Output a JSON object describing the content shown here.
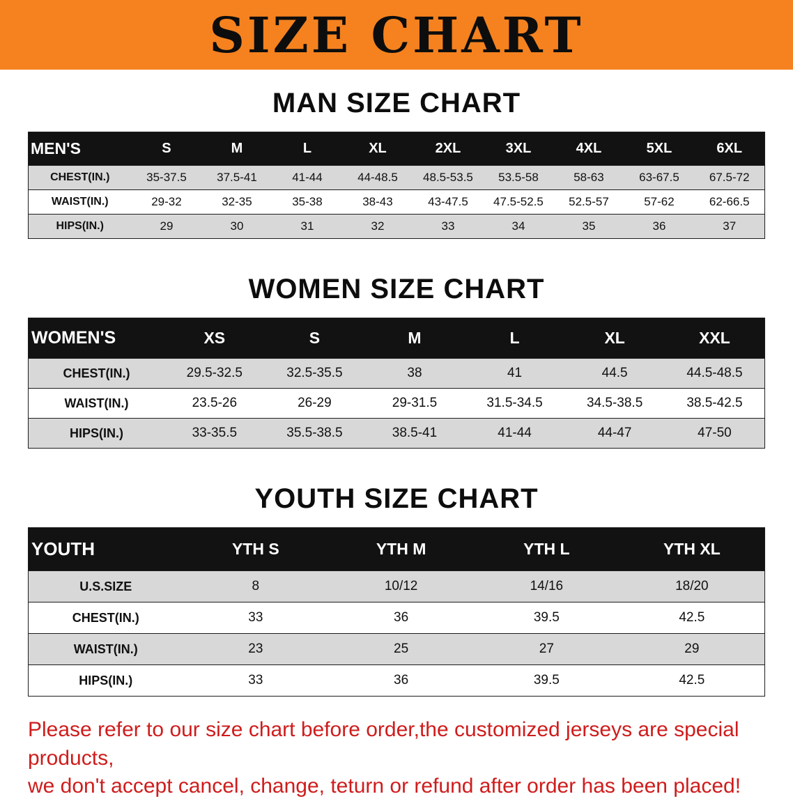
{
  "banner": {
    "title": "SIZE CHART",
    "background_color": "#f5821f"
  },
  "sections": [
    {
      "heading": "MAN SIZE CHART",
      "table": {
        "header": [
          "MEN'S",
          "S",
          "M",
          "L",
          "XL",
          "2XL",
          "3XL",
          "4XL",
          "5XL",
          "6XL"
        ],
        "rows": [
          {
            "label": "CHEST(IN.)",
            "values": [
              "35-37.5",
              "37.5-41",
              "41-44",
              "44-48.5",
              "48.5-53.5",
              "53.5-58",
              "58-63",
              "63-67.5",
              "67.5-72"
            ]
          },
          {
            "label": "WAIST(IN.)",
            "values": [
              "29-32",
              "32-35",
              "35-38",
              "38-43",
              "43-47.5",
              "47.5-52.5",
              "52.5-57",
              "57-62",
              "62-66.5"
            ]
          },
          {
            "label": "HIPS(IN.)",
            "values": [
              "29",
              "30",
              "31",
              "32",
              "33",
              "34",
              "35",
              "36",
              "37"
            ]
          }
        ]
      }
    },
    {
      "heading": "WOMEN SIZE CHART",
      "table": {
        "header": [
          "WOMEN'S",
          "XS",
          "S",
          "M",
          "L",
          "XL",
          "XXL"
        ],
        "rows": [
          {
            "label": "CHEST(IN.)",
            "values": [
              "29.5-32.5",
              "32.5-35.5",
              "38",
              "41",
              "44.5",
              "44.5-48.5"
            ]
          },
          {
            "label": "WAIST(IN.)",
            "values": [
              "23.5-26",
              "26-29",
              "29-31.5",
              "31.5-34.5",
              "34.5-38.5",
              "38.5-42.5"
            ]
          },
          {
            "label": "HIPS(IN.)",
            "values": [
              "33-35.5",
              "35.5-38.5",
              "38.5-41",
              "41-44",
              "44-47",
              "47-50"
            ]
          }
        ]
      }
    },
    {
      "heading": "YOUTH SIZE CHART",
      "table": {
        "header": [
          "YOUTH",
          "YTH S",
          "YTH M",
          "YTH L",
          "YTH XL"
        ],
        "rows": [
          {
            "label": "U.S.SIZE",
            "values": [
              "8",
              "10/12",
              "14/16",
              "18/20"
            ]
          },
          {
            "label": "CHEST(IN.)",
            "values": [
              "33",
              "36",
              "39.5",
              "42.5"
            ]
          },
          {
            "label": "WAIST(IN.)",
            "values": [
              "23",
              "25",
              "27",
              "29"
            ]
          },
          {
            "label": "HIPS(IN.)",
            "values": [
              "33",
              "36",
              "39.5",
              "42.5"
            ]
          }
        ]
      }
    }
  ],
  "disclaimer": {
    "color": "#cf1c1c",
    "line1": "Please refer to our size chart before order,the customized jerseys are special products,",
    "line2": "we don't accept cancel, change, teturn or refund after order has been placed!"
  }
}
